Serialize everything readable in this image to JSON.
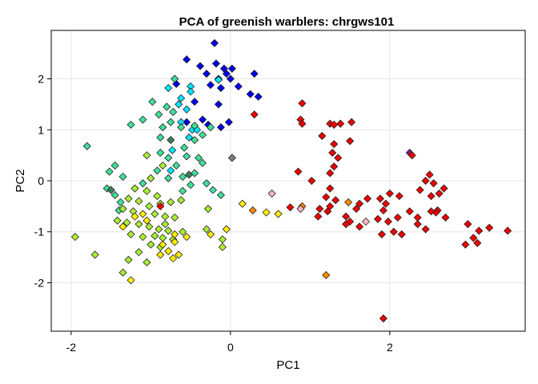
{
  "chart_data": {
    "type": "scatter",
    "title": "PCA of greenish warblers: chrgws101",
    "xlabel": "PC1",
    "ylabel": "PC2",
    "xlim": [
      -2.25,
      3.7
    ],
    "ylim": [
      -2.95,
      2.95
    ],
    "xticks": [
      -2,
      0,
      2
    ],
    "yticks": [
      -2,
      -1,
      0,
      1,
      2
    ],
    "grid": true,
    "legend": "none",
    "marker": "diamond",
    "points": [
      {
        "x": -0.2,
        "y": 2.7,
        "color": "#0000ee"
      },
      {
        "x": -0.55,
        "y": 2.38,
        "color": "#0000ee"
      },
      {
        "x": -0.38,
        "y": 2.25,
        "color": "#0000ee"
      },
      {
        "x": -0.18,
        "y": 2.3,
        "color": "#0000ee"
      },
      {
        "x": -0.08,
        "y": 2.2,
        "color": "#0000ee"
      },
      {
        "x": 0.02,
        "y": 2.2,
        "color": "#0000ee"
      },
      {
        "x": -0.05,
        "y": 2.1,
        "color": "#0000ee"
      },
      {
        "x": 0.0,
        "y": 2.0,
        "color": "#0000ee"
      },
      {
        "x": -0.15,
        "y": 2.0,
        "color": "#0000ee"
      },
      {
        "x": -0.3,
        "y": 2.1,
        "color": "#0000ee"
      },
      {
        "x": -0.25,
        "y": 1.88,
        "color": "#0000ee"
      },
      {
        "x": -0.12,
        "y": 1.82,
        "color": "#0000ee"
      },
      {
        "x": 0.1,
        "y": 1.85,
        "color": "#0000ee"
      },
      {
        "x": 0.3,
        "y": 2.1,
        "color": "#0000ee"
      },
      {
        "x": -0.68,
        "y": 1.9,
        "color": "#0000ee"
      },
      {
        "x": 0.25,
        "y": 1.7,
        "color": "#0000ee"
      },
      {
        "x": 0.35,
        "y": 1.65,
        "color": "#0000ee"
      },
      {
        "x": -0.45,
        "y": 1.55,
        "color": "#0000ee"
      },
      {
        "x": -0.15,
        "y": 1.5,
        "color": "#0000ee"
      },
      {
        "x": -0.35,
        "y": 1.2,
        "color": "#0000ee"
      },
      {
        "x": -0.28,
        "y": 1.1,
        "color": "#0000ee"
      },
      {
        "x": -0.12,
        "y": 1.05,
        "color": "#0000ee"
      },
      {
        "x": -0.02,
        "y": 1.15,
        "color": "#0000ee"
      },
      {
        "x": -0.55,
        "y": 1.15,
        "color": "#0000ee"
      },
      {
        "x": -0.5,
        "y": 1.85,
        "color": "#00e5ff"
      },
      {
        "x": -0.15,
        "y": 1.98,
        "color": "#00e5ff"
      },
      {
        "x": -0.5,
        "y": 1.75,
        "color": "#00e5ff"
      },
      {
        "x": -0.78,
        "y": 1.82,
        "color": "#00e5ff"
      },
      {
        "x": -0.62,
        "y": 1.62,
        "color": "#00e5ff"
      },
      {
        "x": -0.65,
        "y": 1.5,
        "color": "#00e5ff"
      },
      {
        "x": -0.55,
        "y": 1.4,
        "color": "#00e5ff"
      },
      {
        "x": -0.48,
        "y": 1.0,
        "color": "#00e5ff"
      },
      {
        "x": -0.52,
        "y": 0.85,
        "color": "#00e5ff"
      },
      {
        "x": -0.73,
        "y": 0.6,
        "color": "#00e5ff"
      },
      {
        "x": -0.62,
        "y": 1.15,
        "color": "#00e5ff"
      },
      {
        "x": -0.42,
        "y": 1.0,
        "color": "#00e5ff"
      },
      {
        "x": -0.75,
        "y": 0.2,
        "color": "#00e5ff"
      },
      {
        "x": -0.7,
        "y": 2.0,
        "color": "#3fe09a"
      },
      {
        "x": -0.98,
        "y": 1.55,
        "color": "#3fe09a"
      },
      {
        "x": -0.8,
        "y": 1.45,
        "color": "#3fe09a"
      },
      {
        "x": -0.72,
        "y": 1.35,
        "color": "#3fe09a"
      },
      {
        "x": -0.9,
        "y": 1.3,
        "color": "#3fe09a"
      },
      {
        "x": -1.1,
        "y": 1.2,
        "color": "#3fe09a"
      },
      {
        "x": -0.75,
        "y": 1.15,
        "color": "#3fe09a"
      },
      {
        "x": -0.62,
        "y": 1.05,
        "color": "#3fe09a"
      },
      {
        "x": -1.25,
        "y": 1.1,
        "color": "#3fe09a"
      },
      {
        "x": -0.85,
        "y": 1.05,
        "color": "#3fe09a"
      },
      {
        "x": -0.45,
        "y": 1.08,
        "color": "#3fe09a"
      },
      {
        "x": -0.25,
        "y": 1.05,
        "color": "#3fe09a"
      },
      {
        "x": -0.35,
        "y": 0.9,
        "color": "#3fe09a"
      },
      {
        "x": -0.45,
        "y": 0.8,
        "color": "#3fe09a"
      },
      {
        "x": -0.88,
        "y": 0.85,
        "color": "#3fe09a"
      },
      {
        "x": -0.58,
        "y": 0.65,
        "color": "#3fe09a"
      },
      {
        "x": -0.88,
        "y": 0.55,
        "color": "#3fe09a"
      },
      {
        "x": -0.78,
        "y": 0.45,
        "color": "#3fe09a"
      },
      {
        "x": -0.55,
        "y": 0.48,
        "color": "#3fe09a"
      },
      {
        "x": -0.4,
        "y": 0.45,
        "color": "#3fe09a"
      },
      {
        "x": -0.68,
        "y": 0.3,
        "color": "#3fe09a"
      },
      {
        "x": -0.92,
        "y": 0.2,
        "color": "#3fe09a"
      },
      {
        "x": -0.78,
        "y": 0.05,
        "color": "#3fe09a"
      },
      {
        "x": -0.6,
        "y": 0.08,
        "color": "#3fe09a"
      },
      {
        "x": -0.45,
        "y": 0.15,
        "color": "#3fe09a"
      },
      {
        "x": -0.35,
        "y": 0.35,
        "color": "#3fe09a"
      },
      {
        "x": -1.8,
        "y": 0.68,
        "color": "#3fe09a"
      },
      {
        "x": -1.45,
        "y": 0.3,
        "color": "#3fe09a"
      },
      {
        "x": -1.52,
        "y": 0.18,
        "color": "#3fe09a"
      },
      {
        "x": -1.35,
        "y": 0.08,
        "color": "#3fe09a"
      },
      {
        "x": -1.55,
        "y": -0.15,
        "color": "#3fe09a"
      },
      {
        "x": -1.45,
        "y": -0.28,
        "color": "#3fe09a"
      },
      {
        "x": -1.38,
        "y": -0.42,
        "color": "#3fe09a"
      },
      {
        "x": -1.4,
        "y": -0.58,
        "color": "#3fe09a"
      },
      {
        "x": -1.1,
        "y": -0.05,
        "color": "#3fe09a"
      },
      {
        "x": -0.5,
        "y": -0.08,
        "color": "#3fe09a"
      },
      {
        "x": -0.22,
        "y": -0.18,
        "color": "#3fe09a"
      },
      {
        "x": -0.12,
        "y": -0.28,
        "color": "#3fe09a"
      },
      {
        "x": -0.6,
        "y": -0.2,
        "color": "#3fe09a"
      },
      {
        "x": -0.3,
        "y": -0.05,
        "color": "#3fe09a"
      },
      {
        "x": -0.75,
        "y": 0.8,
        "color": "#3a7f55"
      },
      {
        "x": -0.52,
        "y": 0.12,
        "color": "#3a7f55"
      },
      {
        "x": -1.5,
        "y": -0.18,
        "color": "#3a7f55"
      },
      {
        "x": 0.02,
        "y": 0.45,
        "color": "#7f7f7f"
      },
      {
        "x": -1.05,
        "y": 0.5,
        "color": "#aaee33"
      },
      {
        "x": -0.85,
        "y": 0.3,
        "color": "#aaee33"
      },
      {
        "x": -1.0,
        "y": 0.05,
        "color": "#aaee33"
      },
      {
        "x": -1.2,
        "y": -0.15,
        "color": "#aaee33"
      },
      {
        "x": -1.05,
        "y": -0.2,
        "color": "#aaee33"
      },
      {
        "x": -0.92,
        "y": -0.3,
        "color": "#aaee33"
      },
      {
        "x": -1.28,
        "y": -0.35,
        "color": "#aaee33"
      },
      {
        "x": -1.15,
        "y": -0.4,
        "color": "#aaee33"
      },
      {
        "x": -1.02,
        "y": -0.5,
        "color": "#aaee33"
      },
      {
        "x": -0.88,
        "y": -0.45,
        "color": "#aaee33"
      },
      {
        "x": -0.75,
        "y": -0.42,
        "color": "#aaee33"
      },
      {
        "x": -0.62,
        "y": -0.38,
        "color": "#aaee33"
      },
      {
        "x": -1.35,
        "y": -0.55,
        "color": "#aaee33"
      },
      {
        "x": -1.22,
        "y": -0.6,
        "color": "#aaee33"
      },
      {
        "x": -0.95,
        "y": -0.65,
        "color": "#aaee33"
      },
      {
        "x": -0.82,
        "y": -0.7,
        "color": "#aaee33"
      },
      {
        "x": -0.7,
        "y": -0.72,
        "color": "#aaee33"
      },
      {
        "x": -1.42,
        "y": -0.78,
        "color": "#aaee33"
      },
      {
        "x": -1.3,
        "y": -0.82,
        "color": "#aaee33"
      },
      {
        "x": -1.15,
        "y": -0.85,
        "color": "#aaee33"
      },
      {
        "x": -1.02,
        "y": -0.9,
        "color": "#aaee33"
      },
      {
        "x": -0.9,
        "y": -0.95,
        "color": "#aaee33"
      },
      {
        "x": -0.78,
        "y": -0.98,
        "color": "#aaee33"
      },
      {
        "x": -1.25,
        "y": -1.05,
        "color": "#aaee33"
      },
      {
        "x": -1.1,
        "y": -1.1,
        "color": "#aaee33"
      },
      {
        "x": -0.95,
        "y": -1.08,
        "color": "#aaee33"
      },
      {
        "x": -0.85,
        "y": -1.12,
        "color": "#aaee33"
      },
      {
        "x": -0.72,
        "y": -1.15,
        "color": "#aaee33"
      },
      {
        "x": -1.0,
        "y": -1.25,
        "color": "#aaee33"
      },
      {
        "x": -0.88,
        "y": -1.3,
        "color": "#aaee33"
      },
      {
        "x": -1.15,
        "y": -1.4,
        "color": "#aaee33"
      },
      {
        "x": -1.28,
        "y": -1.55,
        "color": "#aaee33"
      },
      {
        "x": -1.05,
        "y": -1.6,
        "color": "#aaee33"
      },
      {
        "x": -1.35,
        "y": -1.8,
        "color": "#aaee33"
      },
      {
        "x": -1.95,
        "y": -1.1,
        "color": "#aaee33"
      },
      {
        "x": -1.7,
        "y": -1.45,
        "color": "#aaee33"
      },
      {
        "x": -0.28,
        "y": -0.55,
        "color": "#aaee33"
      },
      {
        "x": -0.3,
        "y": -0.95,
        "color": "#aaee33"
      },
      {
        "x": -0.1,
        "y": -1.15,
        "color": "#aaee33"
      },
      {
        "x": -0.1,
        "y": -1.3,
        "color": "#aaee33"
      },
      {
        "x": -0.82,
        "y": -0.85,
        "color": "#aaee33"
      },
      {
        "x": -0.6,
        "y": -1.0,
        "color": "#aaee33"
      },
      {
        "x": -1.1,
        "y": -0.65,
        "color": "#ffee00"
      },
      {
        "x": -1.2,
        "y": -0.7,
        "color": "#ffee00"
      },
      {
        "x": -1.05,
        "y": -0.78,
        "color": "#ffee00"
      },
      {
        "x": -1.35,
        "y": -0.9,
        "color": "#ffee00"
      },
      {
        "x": -0.7,
        "y": -1.05,
        "color": "#ffee00"
      },
      {
        "x": -0.55,
        "y": -1.1,
        "color": "#ffee00"
      },
      {
        "x": -0.85,
        "y": -1.25,
        "color": "#ffee00"
      },
      {
        "x": -0.7,
        "y": -1.2,
        "color": "#ffee00"
      },
      {
        "x": -0.78,
        "y": -1.38,
        "color": "#ffee00"
      },
      {
        "x": -0.65,
        "y": -1.45,
        "color": "#ffee00"
      },
      {
        "x": -0.72,
        "y": -1.52,
        "color": "#ffee00"
      },
      {
        "x": -0.88,
        "y": -1.45,
        "color": "#ffee00"
      },
      {
        "x": -1.25,
        "y": -1.95,
        "color": "#ffee00"
      },
      {
        "x": -0.25,
        "y": -1.05,
        "color": "#ffee00"
      },
      {
        "x": -0.05,
        "y": -0.95,
        "color": "#ffee00"
      },
      {
        "x": 0.15,
        "y": -0.45,
        "color": "#ffee00"
      },
      {
        "x": 0.45,
        "y": -0.62,
        "color": "#ffee00"
      },
      {
        "x": 0.6,
        "y": -0.65,
        "color": "#ffee00"
      },
      {
        "x": 0.28,
        "y": -0.58,
        "color": "#ff8800"
      },
      {
        "x": 0.9,
        "y": -0.5,
        "color": "#ff8800"
      },
      {
        "x": 1.48,
        "y": -0.42,
        "color": "#ff8800"
      },
      {
        "x": 1.2,
        "y": -1.85,
        "color": "#ff8800"
      },
      {
        "x": 0.52,
        "y": -0.25,
        "color": "#ffb6c1"
      },
      {
        "x": 0.88,
        "y": -0.55,
        "color": "#ffb6c1"
      },
      {
        "x": 1.7,
        "y": -0.8,
        "color": "#ffb6c1"
      },
      {
        "x": 2.25,
        "y": 0.55,
        "color": "#7a1a8a"
      },
      {
        "x": 0.3,
        "y": 1.3,
        "color": "#ee0000"
      },
      {
        "x": -0.88,
        "y": -0.5,
        "color": "#ee0000"
      },
      {
        "x": 0.9,
        "y": 1.52,
        "color": "#ee0000"
      },
      {
        "x": 0.88,
        "y": 1.2,
        "color": "#ee0000"
      },
      {
        "x": 0.9,
        "y": 1.12,
        "color": "#ee0000"
      },
      {
        "x": 1.25,
        "y": 1.12,
        "color": "#ee0000"
      },
      {
        "x": 1.3,
        "y": 1.1,
        "color": "#ee0000"
      },
      {
        "x": 1.52,
        "y": 1.15,
        "color": "#ee0000"
      },
      {
        "x": 1.15,
        "y": 0.88,
        "color": "#ee0000"
      },
      {
        "x": 1.3,
        "y": 0.72,
        "color": "#ee0000"
      },
      {
        "x": 1.28,
        "y": 0.55,
        "color": "#ee0000"
      },
      {
        "x": 1.35,
        "y": 0.45,
        "color": "#ee0000"
      },
      {
        "x": 1.3,
        "y": 0.28,
        "color": "#ee0000"
      },
      {
        "x": 1.25,
        "y": 0.15,
        "color": "#ee0000"
      },
      {
        "x": 0.85,
        "y": 0.18,
        "color": "#ee0000"
      },
      {
        "x": 1.02,
        "y": 0.0,
        "color": "#ee0000"
      },
      {
        "x": 1.25,
        "y": -0.15,
        "color": "#ee0000"
      },
      {
        "x": 1.2,
        "y": -0.32,
        "color": "#ee0000"
      },
      {
        "x": 1.32,
        "y": -0.38,
        "color": "#ee0000"
      },
      {
        "x": 1.25,
        "y": -0.5,
        "color": "#ee0000"
      },
      {
        "x": 1.22,
        "y": -0.6,
        "color": "#ee0000"
      },
      {
        "x": 1.12,
        "y": -0.55,
        "color": "#ee0000"
      },
      {
        "x": 1.1,
        "y": -0.7,
        "color": "#ee0000"
      },
      {
        "x": 1.45,
        "y": -0.7,
        "color": "#ee0000"
      },
      {
        "x": 1.5,
        "y": -0.8,
        "color": "#ee0000"
      },
      {
        "x": 1.62,
        "y": -0.45,
        "color": "#ee0000"
      },
      {
        "x": 1.58,
        "y": -0.55,
        "color": "#ee0000"
      },
      {
        "x": 1.45,
        "y": -0.85,
        "color": "#ee0000"
      },
      {
        "x": 1.72,
        "y": -0.35,
        "color": "#ee0000"
      },
      {
        "x": 1.88,
        "y": -0.35,
        "color": "#ee0000"
      },
      {
        "x": 2.0,
        "y": -0.25,
        "color": "#ee0000"
      },
      {
        "x": 2.12,
        "y": -0.3,
        "color": "#ee0000"
      },
      {
        "x": 1.95,
        "y": -0.45,
        "color": "#ee0000"
      },
      {
        "x": 1.92,
        "y": -0.58,
        "color": "#ee0000"
      },
      {
        "x": 1.85,
        "y": -0.75,
        "color": "#ee0000"
      },
      {
        "x": 1.98,
        "y": -0.8,
        "color": "#ee0000"
      },
      {
        "x": 2.1,
        "y": -0.72,
        "color": "#ee0000"
      },
      {
        "x": 2.05,
        "y": -1.0,
        "color": "#ee0000"
      },
      {
        "x": 1.9,
        "y": -1.05,
        "color": "#ee0000"
      },
      {
        "x": 2.15,
        "y": -1.05,
        "color": "#ee0000"
      },
      {
        "x": 2.25,
        "y": -0.6,
        "color": "#ee0000"
      },
      {
        "x": 2.35,
        "y": -0.85,
        "color": "#ee0000"
      },
      {
        "x": 2.28,
        "y": 0.5,
        "color": "#ee0000"
      },
      {
        "x": 2.45,
        "y": 0.0,
        "color": "#ee0000"
      },
      {
        "x": 2.38,
        "y": -0.18,
        "color": "#ee0000"
      },
      {
        "x": 2.52,
        "y": -0.3,
        "color": "#ee0000"
      },
      {
        "x": 2.6,
        "y": -0.58,
        "color": "#ee0000"
      },
      {
        "x": 2.35,
        "y": -0.72,
        "color": "#ee0000"
      },
      {
        "x": 2.5,
        "y": 0.12,
        "color": "#ee0000"
      },
      {
        "x": 2.55,
        "y": -0.05,
        "color": "#ee0000"
      },
      {
        "x": 2.62,
        "y": -0.25,
        "color": "#ee0000"
      },
      {
        "x": 2.68,
        "y": -0.15,
        "color": "#ee0000"
      },
      {
        "x": 2.58,
        "y": -0.62,
        "color": "#ee0000"
      },
      {
        "x": 2.7,
        "y": -0.72,
        "color": "#ee0000"
      },
      {
        "x": 2.45,
        "y": -0.95,
        "color": "#ee0000"
      },
      {
        "x": 2.52,
        "y": -0.6,
        "color": "#ee0000"
      },
      {
        "x": 2.98,
        "y": -0.85,
        "color": "#ee0000"
      },
      {
        "x": 3.12,
        "y": -0.98,
        "color": "#ee0000"
      },
      {
        "x": 3.25,
        "y": -0.92,
        "color": "#ee0000"
      },
      {
        "x": 3.05,
        "y": -1.12,
        "color": "#ee0000"
      },
      {
        "x": 2.95,
        "y": -1.25,
        "color": "#ee0000"
      },
      {
        "x": 3.1,
        "y": -1.22,
        "color": "#ee0000"
      },
      {
        "x": 3.48,
        "y": -0.98,
        "color": "#ee0000"
      },
      {
        "x": 1.38,
        "y": 1.12,
        "color": "#ee0000"
      },
      {
        "x": 1.5,
        "y": 0.78,
        "color": "#ee0000"
      },
      {
        "x": 1.92,
        "y": -2.7,
        "color": "#ee0000"
      },
      {
        "x": 0.75,
        "y": -0.52,
        "color": "#ee0000"
      },
      {
        "x": 1.62,
        "y": -0.9,
        "color": "#ee0000"
      }
    ]
  }
}
